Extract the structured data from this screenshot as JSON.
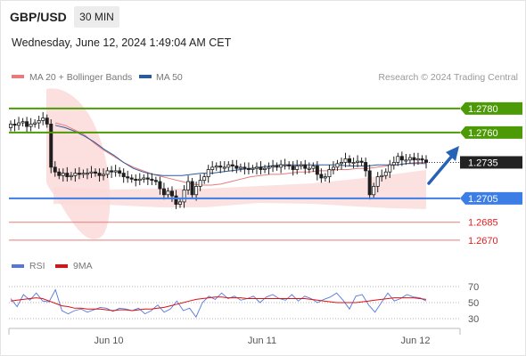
{
  "header": {
    "symbol": "GBP/USD",
    "timeframe": "30 MIN",
    "datetime": "Wednesday, June 12, 2024 1:49:04 AM CET"
  },
  "legend": {
    "ma20": "MA 20 + Bollinger Bands",
    "ma50": "MA 50",
    "credit": "Research © 2024 Trading Central"
  },
  "colors": {
    "resistance": "#4c9a06",
    "support": "#3d7ee6",
    "price": "#1f1f1f",
    "level_light": "#e87b7b",
    "level_text": "#e02020",
    "ma20": "#e87b7b",
    "ma50": "#2d5a99",
    "bollinger": "#fbd9d9",
    "rsi": "#5577dd",
    "rsi_ma": "#dd1111",
    "arrow": "#2762b5"
  },
  "chart_data": [
    {
      "type": "candlestick",
      "x_ticks": [
        "Jun 10",
        "Jun 11",
        "Jun 12"
      ],
      "ylim": [
        1.2664,
        1.28
      ],
      "levels": [
        {
          "value": "1.2780",
          "kind": "resistance"
        },
        {
          "value": "1.2760",
          "kind": "resistance"
        },
        {
          "value": "1.2735",
          "kind": "current"
        },
        {
          "value": "1.2705",
          "kind": "support"
        },
        {
          "value": "1.2685",
          "kind": "level"
        },
        {
          "value": "1.2670",
          "kind": "level"
        }
      ],
      "close": [
        1.2767,
        1.2766,
        1.2768,
        1.2769,
        1.2765,
        1.2767,
        1.2768,
        1.277,
        1.2772,
        1.2767,
        1.2731,
        1.2727,
        1.2724,
        1.2726,
        1.2723,
        1.2724,
        1.2726,
        1.2725,
        1.2726,
        1.2726,
        1.2727,
        1.2726,
        1.2724,
        1.2725,
        1.2728,
        1.2727,
        1.2728,
        1.2726,
        1.2723,
        1.2722,
        1.2721,
        1.272,
        1.2721,
        1.2722,
        1.2721,
        1.272,
        1.2719,
        1.2713,
        1.2708,
        1.2711,
        1.2707,
        1.27,
        1.2702,
        1.2712,
        1.2719,
        1.2708,
        1.2715,
        1.272,
        1.2723,
        1.2729,
        1.2731,
        1.2732,
        1.2731,
        1.2731,
        1.2733,
        1.2732,
        1.273,
        1.2731,
        1.273,
        1.2729,
        1.273,
        1.2731,
        1.2729,
        1.273,
        1.2731,
        1.2732,
        1.2731,
        1.2733,
        1.2733,
        1.2732,
        1.2729,
        1.2732,
        1.2733,
        1.273,
        1.273,
        1.2732,
        1.2725,
        1.2722,
        1.2723,
        1.2729,
        1.2731,
        1.2734,
        1.2735,
        1.2738,
        1.2735,
        1.2735,
        1.2736,
        1.2735,
        1.2728,
        1.2708,
        1.2715,
        1.2723,
        1.2724,
        1.2727,
        1.2733,
        1.2735,
        1.274,
        1.2737,
        1.2737,
        1.2739,
        1.2737,
        1.2738,
        1.2737,
        1.2735
      ],
      "ma20": [
        1.2768,
        1.2766,
        1.2762,
        1.2758,
        1.2751,
        1.2745,
        1.274,
        1.2735,
        1.2731,
        1.2728,
        1.2725,
        1.2723,
        1.2721,
        1.2719,
        1.2717,
        1.2716,
        1.2716,
        1.2717,
        1.2719,
        1.2721,
        1.2723,
        1.2724,
        1.2725,
        1.2725,
        1.2726,
        1.2727,
        1.2727,
        1.2728,
        1.2728,
        1.2729,
        1.2729,
        1.273,
        1.273,
        1.2731,
        1.2732,
        1.2733,
        1.2734,
        1.2735,
        1.2735
      ],
      "ma50": [
        1.2766,
        1.2764,
        1.2761,
        1.2757,
        1.2752,
        1.2746,
        1.2741,
        1.2735,
        1.273,
        1.2727,
        1.2725,
        1.2724,
        1.2724,
        1.2724,
        1.2725,
        1.2726,
        1.2726,
        1.2727,
        1.2728,
        1.2729,
        1.273,
        1.2731,
        1.2732,
        1.2733,
        1.2733,
        1.2733,
        1.2733,
        1.2733,
        1.2733,
        1.2733,
        1.2732,
        1.2732,
        1.2732,
        1.2733,
        1.2733,
        1.2733,
        1.2734,
        1.2734,
        1.2734
      ]
    },
    {
      "type": "line",
      "title": "RSI",
      "series": [
        {
          "name": "RSI"
        },
        {
          "name": "9MA"
        }
      ],
      "y_ticks": [
        "70",
        "50",
        "30"
      ],
      "ylim": [
        20,
        80
      ],
      "rsi": [
        55,
        45,
        60,
        53,
        62,
        52,
        51,
        66,
        40,
        36,
        40,
        42,
        38,
        41,
        44,
        43,
        39,
        43,
        42,
        40,
        43,
        36,
        40,
        47,
        38,
        42,
        52,
        40,
        43,
        32,
        50,
        58,
        54,
        62,
        55,
        58,
        53,
        55,
        58,
        50,
        57,
        60,
        55,
        53,
        60,
        52,
        58,
        55,
        50,
        54,
        57,
        62,
        53,
        42,
        58,
        60,
        47,
        38,
        50,
        62,
        52,
        55,
        60,
        57,
        56,
        52
      ],
      "rsi_ma": [
        52,
        53,
        54,
        55,
        56,
        55,
        52,
        49,
        46,
        45,
        43,
        43,
        42,
        42,
        42,
        41,
        40,
        41,
        41,
        40,
        41,
        42,
        42,
        43,
        44,
        46,
        48,
        50,
        52,
        54,
        55,
        56,
        57,
        57,
        56,
        56,
        56,
        55,
        55,
        55,
        55,
        55,
        55,
        55,
        55,
        55,
        55,
        54,
        53,
        52,
        51,
        50,
        50,
        50,
        50,
        51,
        52,
        53,
        54,
        55,
        56,
        56,
        56,
        56,
        55,
        54
      ]
    }
  ]
}
